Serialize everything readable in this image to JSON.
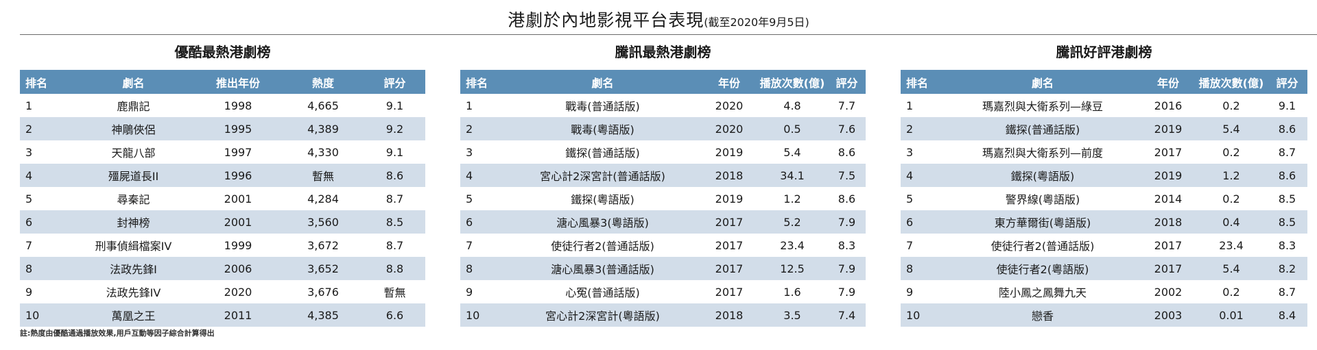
{
  "header": {
    "title": "港劇於內地影視平台表現",
    "subtitle": "(截至2020年9月5日)"
  },
  "tables": [
    {
      "title": "優酷最熱港劇榜",
      "columns": [
        "排名",
        "劇名",
        "推出年份",
        "熱度",
        "評分"
      ],
      "rows": [
        [
          "1",
          "鹿鼎記",
          "1998",
          "4,665",
          "9.1"
        ],
        [
          "2",
          "神鵰俠侶",
          "1995",
          "4,389",
          "9.2"
        ],
        [
          "3",
          "天龍八部",
          "1997",
          "4,330",
          "9.1"
        ],
        [
          "4",
          "殭屍道長II",
          "1996",
          "暫無",
          "8.6"
        ],
        [
          "5",
          "尋秦記",
          "2001",
          "4,284",
          "8.7"
        ],
        [
          "6",
          "封神榜",
          "2001",
          "3,560",
          "8.5"
        ],
        [
          "7",
          "刑事偵緝檔案IV",
          "1999",
          "3,672",
          "8.7"
        ],
        [
          "8",
          "法政先鋒I",
          "2006",
          "3,652",
          "8.8"
        ],
        [
          "9",
          "法政先鋒IV",
          "2020",
          "3,676",
          "暫無"
        ],
        [
          "10",
          "萬凰之王",
          "2011",
          "4,385",
          "6.6"
        ]
      ]
    },
    {
      "title": "騰訊最熱港劇榜",
      "columns": [
        "排名",
        "劇名",
        "年份",
        "播放次數(億)",
        "評分"
      ],
      "rows": [
        [
          "1",
          "戰毒(普通話版)",
          "2020",
          "4.8",
          "7.7"
        ],
        [
          "2",
          "戰毒(粵語版)",
          "2020",
          "0.5",
          "7.6"
        ],
        [
          "3",
          "鐵探(普通話版)",
          "2019",
          "5.4",
          "8.6"
        ],
        [
          "4",
          "宮心計2深宮計(普通話版)",
          "2018",
          "34.1",
          "7.5"
        ],
        [
          "5",
          "鐵探(粵語版)",
          "2019",
          "1.2",
          "8.6"
        ],
        [
          "6",
          "溏心風暴3(粵語版)",
          "2017",
          "5.2",
          "7.9"
        ],
        [
          "7",
          "使徒行者2(普通話版)",
          "2017",
          "23.4",
          "8.3"
        ],
        [
          "8",
          "溏心風暴3(普通話版)",
          "2017",
          "12.5",
          "7.9"
        ],
        [
          "9",
          "心冤(普通話版)",
          "2017",
          "1.6",
          "7.9"
        ],
        [
          "10",
          "宮心計2深宮計(粵語版)",
          "2018",
          "3.5",
          "7.4"
        ]
      ]
    },
    {
      "title": "騰訊好評港劇榜",
      "columns": [
        "排名",
        "劇名",
        "年份",
        "播放次數(億)",
        "評分"
      ],
      "rows": [
        [
          "1",
          "瑪嘉烈與大衛系列—綠豆",
          "2016",
          "0.2",
          "9.1"
        ],
        [
          "2",
          "鐵探(普通話版)",
          "2019",
          "5.4",
          "8.6"
        ],
        [
          "3",
          "瑪嘉烈與大衛系列—前度",
          "2017",
          "0.2",
          "8.7"
        ],
        [
          "4",
          "鐵探(粵語版)",
          "2019",
          "1.2",
          "8.6"
        ],
        [
          "5",
          "警界線(粵語版)",
          "2014",
          "0.2",
          "8.5"
        ],
        [
          "6",
          "東方華爾街(粵語版)",
          "2018",
          "0.4",
          "8.5"
        ],
        [
          "7",
          "使徒行者2(普通話版)",
          "2017",
          "23.4",
          "8.3"
        ],
        [
          "8",
          "使徒行者2(粵語版)",
          "2017",
          "5.4",
          "8.2"
        ],
        [
          "9",
          "陸小鳳之鳳舞九天",
          "2002",
          "0.2",
          "8.7"
        ],
        [
          "10",
          "戀香",
          "2003",
          "0.01",
          "8.4"
        ]
      ]
    }
  ],
  "footnote": "註:熱度由優酷通過播放效果,用戶互動等因子綜合計算得出"
}
